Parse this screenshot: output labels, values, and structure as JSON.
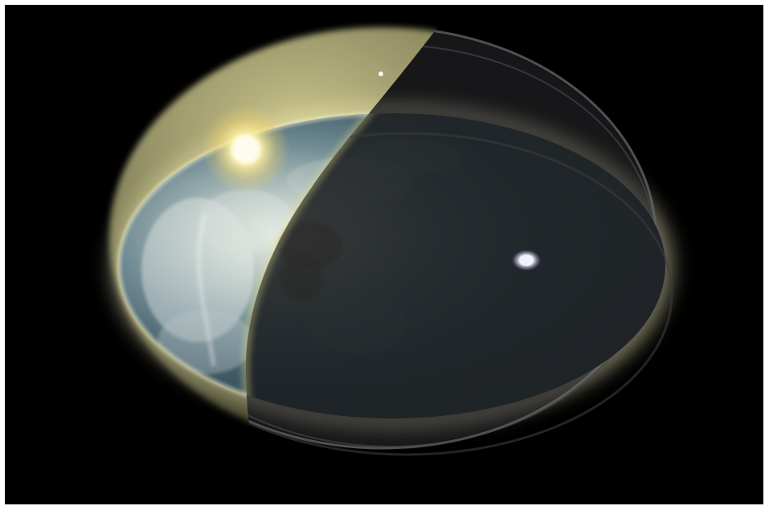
{
  "image": {
    "subject": "earth-dome-visualization",
    "colors": {
      "background": "#000000",
      "border": "#ffffff",
      "sun_glow": "#f4eaa0",
      "ocean_day": "#3b5a6b",
      "night_side": "#1d2022",
      "moon": "#d8d8e8"
    }
  }
}
